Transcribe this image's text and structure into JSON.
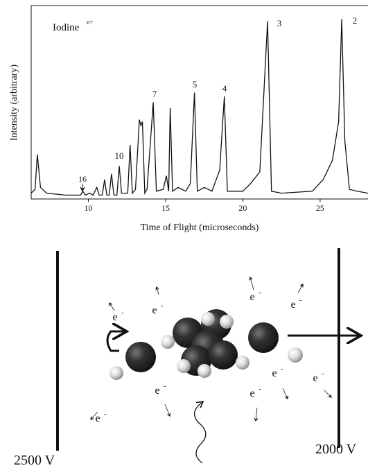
{
  "chart_data": {
    "type": "line",
    "title": "Iodine",
    "title_superscript": "n+",
    "x_label": "Time of Flight (microseconds)",
    "y_label": "Intensity (arbitrary)",
    "x": [
      6.3,
      6.55,
      6.7,
      6.9,
      7.3,
      8.5,
      9.5,
      9.64,
      9.8,
      10.1,
      10.3,
      10.55,
      10.7,
      10.9,
      11.05,
      11.2,
      11.35,
      11.5,
      11.65,
      11.85,
      12.0,
      12.15,
      12.55,
      12.7,
      12.85,
      13.05,
      13.3,
      13.4,
      13.5,
      13.65,
      13.8,
      14.2,
      14.4,
      14.85,
      15.05,
      15.2,
      15.3,
      15.45,
      15.8,
      16.3,
      16.6,
      16.87,
      17.05,
      17.5,
      18.0,
      18.5,
      18.8,
      19.0,
      20.0,
      20.5,
      21.1,
      21.6,
      21.85,
      22.5,
      24.5,
      25.2,
      25.8,
      26.2,
      26.4,
      26.6,
      26.9,
      27.4,
      28.1
    ],
    "values": [
      3,
      5,
      23,
      6,
      3,
      2,
      2,
      4,
      2,
      3,
      2,
      6,
      2,
      2,
      10,
      2,
      2,
      13,
      2,
      2,
      17,
      3,
      3,
      28,
      3,
      5,
      41,
      38,
      40,
      3,
      5,
      50,
      4,
      5,
      12,
      4,
      47,
      4,
      6,
      4,
      8,
      55,
      4,
      6,
      4,
      15,
      53,
      4,
      4,
      8,
      14,
      92,
      4,
      3,
      4,
      10,
      20,
      40,
      93,
      30,
      5,
      4,
      3
    ],
    "color": "#111111",
    "xlim": [
      6.3,
      28.1
    ],
    "xticks": [
      10,
      15,
      20,
      25
    ],
    "ylim": [
      0,
      100
    ],
    "peak_labels": [
      "16",
      "10",
      "7",
      "5",
      "4",
      "3",
      "2"
    ]
  },
  "diagram": {
    "electron": {
      "symbol": "e",
      "charge": "-"
    },
    "plates": [
      {
        "voltage": "2500 V"
      },
      {
        "voltage": "2000 V"
      }
    ]
  }
}
